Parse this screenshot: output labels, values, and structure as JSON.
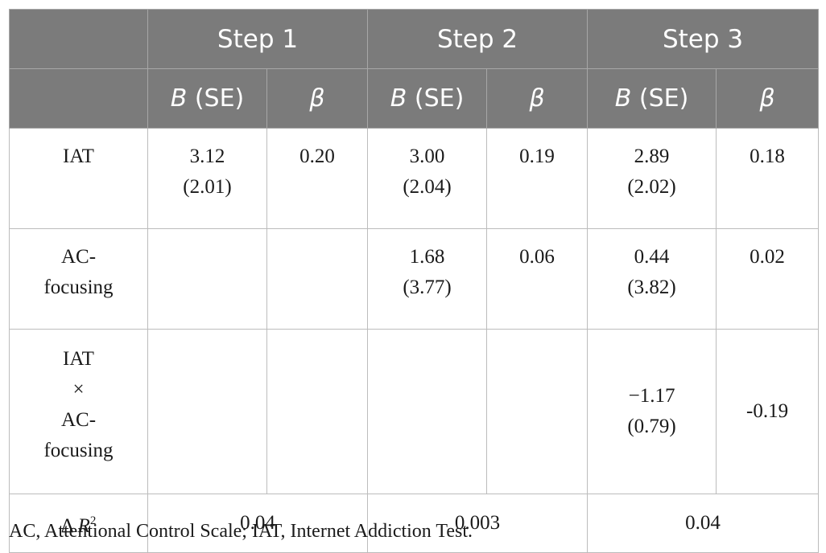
{
  "table": {
    "steps": [
      "Step 1",
      "Step 2",
      "Step 3"
    ],
    "sub_headers": {
      "b_italic": "B",
      "b_rest": " (SE)",
      "beta": "β"
    },
    "rows": [
      {
        "label": "IAT",
        "cells": [
          {
            "b": "3.12",
            "se": "(2.01)",
            "beta": "0.20"
          },
          {
            "b": "3.00",
            "se": "(2.04)",
            "beta": "0.19"
          },
          {
            "b": "2.89",
            "se": "(2.02)",
            "beta": "0.18"
          }
        ]
      },
      {
        "label": "AC-\nfocusing",
        "cells": [
          {
            "b": "",
            "se": "",
            "beta": ""
          },
          {
            "b": "1.68",
            "se": "(3.77)",
            "beta": "0.06"
          },
          {
            "b": "0.44",
            "se": "(3.82)",
            "beta": "0.02"
          }
        ]
      },
      {
        "label": "IAT\n×\nAC-\nfocusing",
        "cells": [
          {
            "b": "",
            "se": "",
            "beta": ""
          },
          {
            "b": "",
            "se": "",
            "beta": ""
          },
          {
            "b": "−1.17",
            "se": "(0.79)",
            "beta": "-0.19"
          }
        ]
      }
    ],
    "delta_r2": {
      "label_prefix": "Δ ",
      "label_var": "R",
      "label_sup": "2",
      "values": [
        "0.04",
        "0.003",
        "0.04"
      ]
    }
  },
  "caption": "AC, Attentional Control Scale; IAT, Internet Addiction Test."
}
